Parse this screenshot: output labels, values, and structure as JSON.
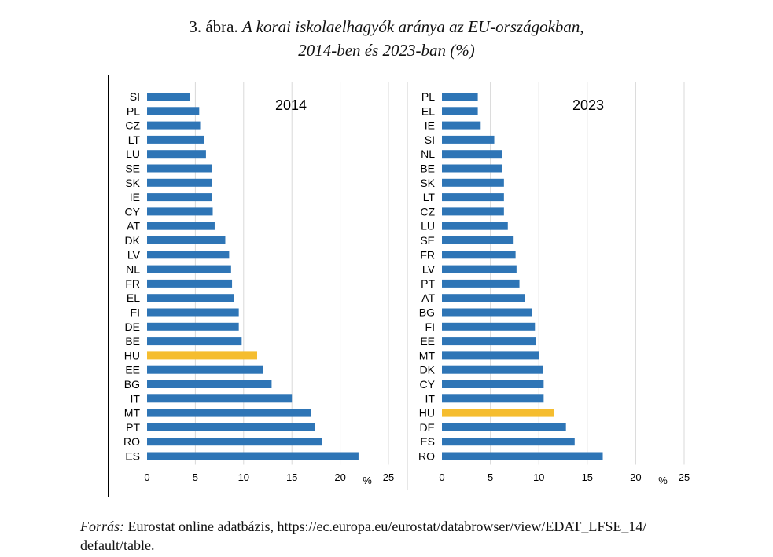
{
  "figure": {
    "number": "3. ábra.",
    "title_line1": "A korai iskolaelhagyók aránya az EU-országokban,",
    "title_line2": "2014-ben és 2023-ban (%)"
  },
  "source": {
    "label": "Forrás:",
    "text": "Eurostat online adatbázis, https://ec.europa.eu/eurostat/databrowser/view/EDAT_LFSE_14/",
    "text_line2": "default/table."
  },
  "colors": {
    "bar": "#2e75b6",
    "highlight": "#f5bd2f",
    "grid": "#d9d9d9"
  },
  "chart_data": [
    {
      "type": "bar",
      "orientation": "horizontal",
      "title": "2014",
      "xlabel": "%",
      "xlim": [
        0,
        25
      ],
      "xticks": [
        0,
        5,
        10,
        15,
        20,
        25
      ],
      "highlight": "HU",
      "categories": [
        "SI",
        "PL",
        "CZ",
        "LT",
        "LU",
        "SE",
        "SK",
        "IE",
        "CY",
        "AT",
        "DK",
        "LV",
        "NL",
        "FR",
        "EL",
        "FI",
        "DE",
        "BE",
        "HU",
        "EE",
        "BG",
        "IT",
        "MT",
        "PT",
        "RO",
        "ES"
      ],
      "values": [
        4.4,
        5.4,
        5.5,
        5.9,
        6.1,
        6.7,
        6.7,
        6.7,
        6.8,
        7.0,
        8.1,
        8.5,
        8.7,
        8.8,
        9.0,
        9.5,
        9.5,
        9.8,
        11.4,
        12.0,
        12.9,
        15.0,
        17.0,
        17.4,
        18.1,
        21.9
      ]
    },
    {
      "type": "bar",
      "orientation": "horizontal",
      "title": "2023",
      "xlabel": "%",
      "xlim": [
        0,
        25
      ],
      "xticks": [
        0,
        5,
        10,
        15,
        20,
        25
      ],
      "highlight": "HU",
      "categories": [
        "PL",
        "EL",
        "IE",
        "SI",
        "NL",
        "BE",
        "SK",
        "LT",
        "CZ",
        "LU",
        "SE",
        "FR",
        "LV",
        "PT",
        "AT",
        "BG",
        "FI",
        "EE",
        "MT",
        "DK",
        "CY",
        "IT",
        "HU",
        "DE",
        "ES",
        "RO"
      ],
      "values": [
        3.7,
        3.7,
        4.0,
        5.4,
        6.2,
        6.2,
        6.4,
        6.4,
        6.4,
        6.8,
        7.4,
        7.6,
        7.7,
        8.0,
        8.6,
        9.3,
        9.6,
        9.7,
        10.0,
        10.4,
        10.5,
        10.5,
        11.6,
        12.8,
        13.7,
        16.6
      ]
    }
  ]
}
